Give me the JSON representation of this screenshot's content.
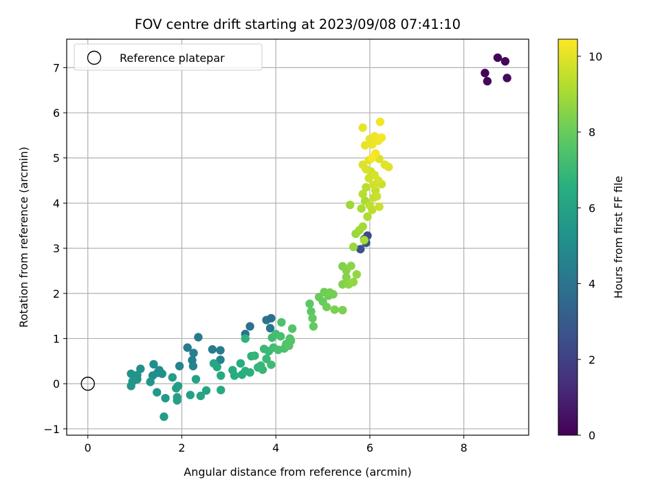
{
  "chart_data": {
    "type": "scatter",
    "title": "FOV centre drift starting at 2023/09/08 07:41:10",
    "xlabel": "Angular distance from reference (arcmin)",
    "ylabel": "Rotation from reference (arcmin)",
    "xlim": [
      -0.45,
      9.38
    ],
    "ylim": [
      -1.14,
      7.63
    ],
    "x_ticks": [
      0,
      2,
      4,
      6,
      8
    ],
    "y_ticks": [
      -1,
      0,
      1,
      2,
      3,
      4,
      5,
      6,
      7
    ],
    "grid": true,
    "legend": {
      "position": "top-left",
      "entries": [
        "Reference platepar"
      ]
    },
    "reference_point": {
      "x": 0,
      "y": 0
    },
    "colorbar": {
      "label": "Hours from first FF file",
      "colormap": "viridis",
      "range": [
        0,
        10.45
      ],
      "ticks": [
        0,
        2,
        4,
        6,
        8,
        10
      ]
    },
    "points": [
      {
        "x": 8.45,
        "y": 6.88,
        "c": 0.1
      },
      {
        "x": 8.5,
        "y": 6.7,
        "c": 0.2
      },
      {
        "x": 8.72,
        "y": 7.22,
        "c": 0.1
      },
      {
        "x": 8.88,
        "y": 7.14,
        "c": 0.2
      },
      {
        "x": 8.92,
        "y": 6.77,
        "c": 0.3
      },
      {
        "x": 5.8,
        "y": 2.98,
        "c": 2.6
      },
      {
        "x": 5.88,
        "y": 3.2,
        "c": 2.5
      },
      {
        "x": 5.92,
        "y": 3.12,
        "c": 2.7
      },
      {
        "x": 5.95,
        "y": 3.28,
        "c": 2.4
      },
      {
        "x": 3.35,
        "y": 1.1,
        "c": 4.0
      },
      {
        "x": 3.45,
        "y": 1.27,
        "c": 3.9
      },
      {
        "x": 3.8,
        "y": 1.41,
        "c": 4.0
      },
      {
        "x": 3.9,
        "y": 1.45,
        "c": 3.8
      },
      {
        "x": 3.88,
        "y": 1.23,
        "c": 4.1
      },
      {
        "x": 2.35,
        "y": 1.03,
        "c": 4.2
      },
      {
        "x": 2.12,
        "y": 0.8,
        "c": 4.4
      },
      {
        "x": 2.25,
        "y": 0.68,
        "c": 4.5
      },
      {
        "x": 2.22,
        "y": 0.52,
        "c": 4.5
      },
      {
        "x": 2.24,
        "y": 0.39,
        "c": 4.6
      },
      {
        "x": 1.95,
        "y": 0.39,
        "c": 4.6
      },
      {
        "x": 2.65,
        "y": 0.76,
        "c": 4.3
      },
      {
        "x": 2.82,
        "y": 0.74,
        "c": 4.4
      },
      {
        "x": 2.82,
        "y": 0.53,
        "c": 4.5
      },
      {
        "x": 1.4,
        "y": 0.43,
        "c": 5.0
      },
      {
        "x": 1.52,
        "y": 0.3,
        "c": 5.1
      },
      {
        "x": 1.48,
        "y": 0.24,
        "c": 5.0
      },
      {
        "x": 1.38,
        "y": 0.18,
        "c": 5.1
      },
      {
        "x": 1.58,
        "y": 0.22,
        "c": 5.2
      },
      {
        "x": 1.12,
        "y": 0.33,
        "c": 5.2
      },
      {
        "x": 1.05,
        "y": 0.19,
        "c": 5.3
      },
      {
        "x": 0.92,
        "y": 0.22,
        "c": 5.3
      },
      {
        "x": 1.05,
        "y": 0.1,
        "c": 5.3
      },
      {
        "x": 0.95,
        "y": 0.05,
        "c": 5.4
      },
      {
        "x": 0.92,
        "y": -0.05,
        "c": 5.5
      },
      {
        "x": 1.33,
        "y": 0.04,
        "c": 5.4
      },
      {
        "x": 1.47,
        "y": -0.19,
        "c": 5.6
      },
      {
        "x": 1.65,
        "y": -0.32,
        "c": 5.6
      },
      {
        "x": 1.62,
        "y": -0.73,
        "c": 5.7
      },
      {
        "x": 1.8,
        "y": 0.14,
        "c": 5.7
      },
      {
        "x": 1.92,
        "y": -0.05,
        "c": 5.8
      },
      {
        "x": 1.88,
        "y": -0.1,
        "c": 5.8
      },
      {
        "x": 1.9,
        "y": -0.3,
        "c": 5.9
      },
      {
        "x": 1.9,
        "y": -0.37,
        "c": 5.9
      },
      {
        "x": 2.18,
        "y": -0.25,
        "c": 5.9
      },
      {
        "x": 2.3,
        "y": 0.1,
        "c": 6.0
      },
      {
        "x": 2.4,
        "y": -0.27,
        "c": 6.1
      },
      {
        "x": 2.52,
        "y": -0.15,
        "c": 6.1
      },
      {
        "x": 2.68,
        "y": 0.45,
        "c": 6.2
      },
      {
        "x": 2.75,
        "y": 0.37,
        "c": 6.2
      },
      {
        "x": 2.83,
        "y": 0.18,
        "c": 6.3
      },
      {
        "x": 2.83,
        "y": -0.14,
        "c": 6.3
      },
      {
        "x": 3.08,
        "y": 0.3,
        "c": 6.4
      },
      {
        "x": 3.12,
        "y": 0.18,
        "c": 6.4
      },
      {
        "x": 3.25,
        "y": 0.45,
        "c": 6.5
      },
      {
        "x": 3.28,
        "y": 0.2,
        "c": 6.5
      },
      {
        "x": 3.35,
        "y": 0.28,
        "c": 6.6
      },
      {
        "x": 3.45,
        "y": 0.25,
        "c": 6.6
      },
      {
        "x": 3.35,
        "y": 1.0,
        "c": 6.7
      },
      {
        "x": 3.48,
        "y": 0.61,
        "c": 6.7
      },
      {
        "x": 3.55,
        "y": 0.62,
        "c": 6.8
      },
      {
        "x": 3.62,
        "y": 0.36,
        "c": 6.8
      },
      {
        "x": 3.68,
        "y": 0.4,
        "c": 6.9
      },
      {
        "x": 3.72,
        "y": 0.31,
        "c": 6.9
      },
      {
        "x": 3.75,
        "y": 0.77,
        "c": 7.0
      },
      {
        "x": 3.8,
        "y": 0.55,
        "c": 7.0
      },
      {
        "x": 3.85,
        "y": 0.72,
        "c": 7.0
      },
      {
        "x": 3.9,
        "y": 0.42,
        "c": 7.1
      },
      {
        "x": 3.92,
        "y": 1.02,
        "c": 7.1
      },
      {
        "x": 3.95,
        "y": 0.8,
        "c": 7.2
      },
      {
        "x": 4.0,
        "y": 1.1,
        "c": 7.2
      },
      {
        "x": 4.05,
        "y": 0.75,
        "c": 7.3
      },
      {
        "x": 4.1,
        "y": 1.05,
        "c": 7.3
      },
      {
        "x": 4.12,
        "y": 1.36,
        "c": 7.4
      },
      {
        "x": 4.18,
        "y": 0.78,
        "c": 7.4
      },
      {
        "x": 4.22,
        "y": 0.88,
        "c": 7.5
      },
      {
        "x": 4.3,
        "y": 1.0,
        "c": 7.5
      },
      {
        "x": 4.35,
        "y": 1.22,
        "c": 7.6
      },
      {
        "x": 4.32,
        "y": 0.95,
        "c": 7.6
      },
      {
        "x": 4.28,
        "y": 0.84,
        "c": 7.6
      },
      {
        "x": 4.72,
        "y": 1.77,
        "c": 7.8
      },
      {
        "x": 4.75,
        "y": 1.6,
        "c": 7.8
      },
      {
        "x": 4.78,
        "y": 1.45,
        "c": 7.9
      },
      {
        "x": 4.8,
        "y": 1.27,
        "c": 7.9
      },
      {
        "x": 4.92,
        "y": 1.92,
        "c": 8.0
      },
      {
        "x": 5.0,
        "y": 1.82,
        "c": 8.0
      },
      {
        "x": 5.03,
        "y": 2.03,
        "c": 8.1
      },
      {
        "x": 5.08,
        "y": 1.7,
        "c": 8.1
      },
      {
        "x": 5.12,
        "y": 1.95,
        "c": 8.1
      },
      {
        "x": 5.15,
        "y": 2.02,
        "c": 8.2
      },
      {
        "x": 5.22,
        "y": 1.98,
        "c": 8.2
      },
      {
        "x": 5.25,
        "y": 1.64,
        "c": 8.3
      },
      {
        "x": 5.42,
        "y": 1.63,
        "c": 8.3
      },
      {
        "x": 5.42,
        "y": 2.2,
        "c": 8.4
      },
      {
        "x": 5.42,
        "y": 2.6,
        "c": 8.4
      },
      {
        "x": 5.5,
        "y": 2.51,
        "c": 8.5
      },
      {
        "x": 5.5,
        "y": 2.36,
        "c": 8.5
      },
      {
        "x": 5.55,
        "y": 2.2,
        "c": 8.6
      },
      {
        "x": 5.6,
        "y": 2.61,
        "c": 8.6
      },
      {
        "x": 5.65,
        "y": 2.25,
        "c": 8.7
      },
      {
        "x": 5.72,
        "y": 2.42,
        "c": 8.7
      },
      {
        "x": 5.65,
        "y": 3.03,
        "c": 8.8
      },
      {
        "x": 5.7,
        "y": 3.32,
        "c": 8.8
      },
      {
        "x": 5.58,
        "y": 3.96,
        "c": 8.9
      },
      {
        "x": 5.78,
        "y": 3.4,
        "c": 8.9
      },
      {
        "x": 5.85,
        "y": 3.48,
        "c": 9.0
      },
      {
        "x": 5.88,
        "y": 3.18,
        "c": 9.0
      },
      {
        "x": 5.82,
        "y": 3.88,
        "c": 9.1
      },
      {
        "x": 5.9,
        "y": 4.05,
        "c": 9.1
      },
      {
        "x": 5.95,
        "y": 3.7,
        "c": 9.2
      },
      {
        "x": 5.85,
        "y": 4.2,
        "c": 9.3
      },
      {
        "x": 5.92,
        "y": 4.35,
        "c": 9.3
      },
      {
        "x": 6.0,
        "y": 3.95,
        "c": 9.4
      },
      {
        "x": 6.05,
        "y": 3.85,
        "c": 9.4
      },
      {
        "x": 6.08,
        "y": 4.12,
        "c": 9.5
      },
      {
        "x": 6.12,
        "y": 4.28,
        "c": 9.5
      },
      {
        "x": 6.2,
        "y": 3.92,
        "c": 9.6
      },
      {
        "x": 6.25,
        "y": 4.42,
        "c": 9.6
      },
      {
        "x": 5.98,
        "y": 4.55,
        "c": 9.7
      },
      {
        "x": 6.02,
        "y": 4.7,
        "c": 9.7
      },
      {
        "x": 6.1,
        "y": 4.62,
        "c": 9.8
      },
      {
        "x": 6.18,
        "y": 4.5,
        "c": 9.8
      },
      {
        "x": 5.85,
        "y": 4.85,
        "c": 9.9
      },
      {
        "x": 5.92,
        "y": 4.75,
        "c": 9.9
      },
      {
        "x": 6.2,
        "y": 4.98,
        "c": 9.9
      },
      {
        "x": 6.32,
        "y": 4.85,
        "c": 10.0
      },
      {
        "x": 6.4,
        "y": 4.8,
        "c": 10.0
      },
      {
        "x": 5.98,
        "y": 4.95,
        "c": 10.0
      },
      {
        "x": 5.9,
        "y": 5.28,
        "c": 10.1
      },
      {
        "x": 5.85,
        "y": 5.67,
        "c": 10.1
      },
      {
        "x": 6.0,
        "y": 5.42,
        "c": 10.1
      },
      {
        "x": 6.05,
        "y": 5.3,
        "c": 10.2
      },
      {
        "x": 6.1,
        "y": 5.48,
        "c": 10.2
      },
      {
        "x": 6.18,
        "y": 5.38,
        "c": 10.2
      },
      {
        "x": 6.25,
        "y": 5.45,
        "c": 10.3
      },
      {
        "x": 6.22,
        "y": 5.8,
        "c": 10.3
      },
      {
        "x": 6.12,
        "y": 5.1,
        "c": 10.3
      },
      {
        "x": 6.05,
        "y": 5.0,
        "c": 10.4
      },
      {
        "x": 6.08,
        "y": 4.4,
        "c": 9.7
      },
      {
        "x": 6.15,
        "y": 4.15,
        "c": 9.6
      }
    ]
  }
}
